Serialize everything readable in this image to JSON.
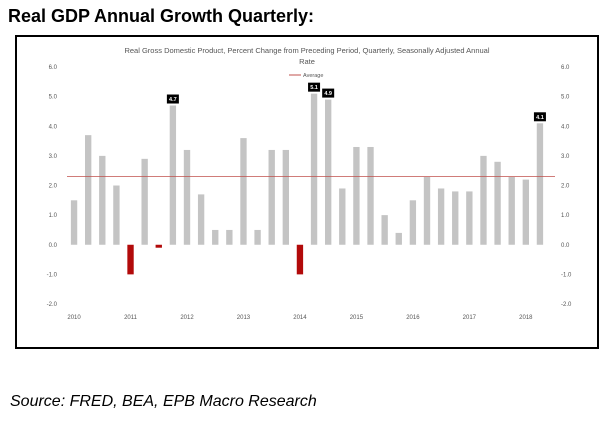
{
  "heading": "Real GDP Annual Growth Quarterly:",
  "source": "Source: FRED, BEA, EPB Macro Research",
  "colors": {
    "positive": "#c4c4c4",
    "negative": "#b20a0a",
    "average_line": "#c0504d",
    "label_bg": "#000000"
  },
  "chart_data": {
    "type": "bar",
    "title": "Real Gross Domestic Product, Percent Change from Preceding Period, Quarterly, Seasonally Adjusted Annual Rate",
    "title_lines": [
      "Real Gross Domestic Product, Percent Change from Preceding Period, Quarterly, Seasonally Adjusted Annual",
      "Rate"
    ],
    "legend": {
      "entries": [
        "Average"
      ],
      "position": "top-center"
    },
    "average": 2.3,
    "ylim": [
      -2.0,
      6.0
    ],
    "yticks": [
      "6.0",
      "5.0",
      "4.0",
      "3.0",
      "2.0",
      "1.0",
      "0.0",
      "-1.0",
      "-2.0"
    ],
    "year_labels": [
      "2010",
      "2011",
      "2012",
      "2013",
      "2014",
      "2015",
      "2016",
      "2017",
      "2018"
    ],
    "year_label_quarter_index": [
      0,
      4,
      8,
      12,
      16,
      20,
      24,
      28,
      32
    ],
    "values": [
      1.5,
      3.7,
      3.0,
      2.0,
      -1.0,
      2.9,
      -0.1,
      4.7,
      3.2,
      1.7,
      0.5,
      0.5,
      3.6,
      0.5,
      3.2,
      3.2,
      -1.0,
      5.1,
      4.9,
      1.9,
      3.3,
      3.3,
      1.0,
      0.4,
      1.5,
      2.3,
      1.9,
      1.8,
      1.8,
      3.0,
      2.8,
      2.3,
      2.2,
      4.1
    ],
    "data_labels": [
      {
        "index": 7,
        "text": "4.7"
      },
      {
        "index": 17,
        "text": "5.1"
      },
      {
        "index": 18,
        "text": "4.9"
      },
      {
        "index": 33,
        "text": "4.1"
      }
    ]
  }
}
